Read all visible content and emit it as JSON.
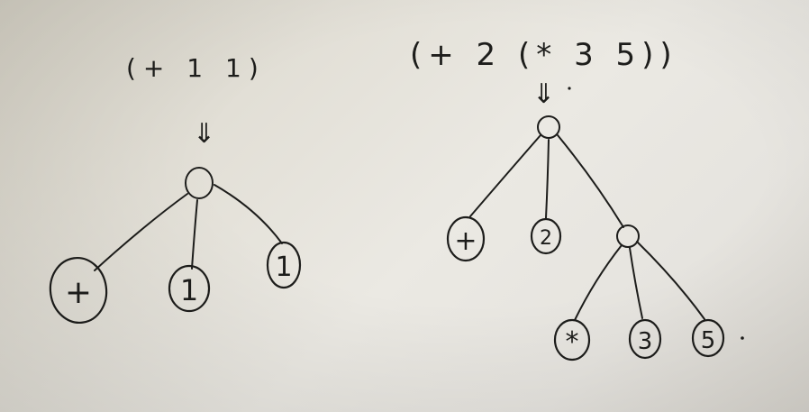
{
  "left_tree": {
    "expression": "(+ 1 1)",
    "arrow": "⇓",
    "children": [
      "+",
      "1",
      "1"
    ]
  },
  "right_tree": {
    "expression": "(+ 2 (* 3 5))",
    "arrow": "⇓",
    "children": [
      "+",
      "2"
    ],
    "subtree_children": [
      "*",
      "3",
      "5"
    ]
  },
  "colors": {
    "ink": "#1d1d1b",
    "paper": "#e6e4de"
  }
}
